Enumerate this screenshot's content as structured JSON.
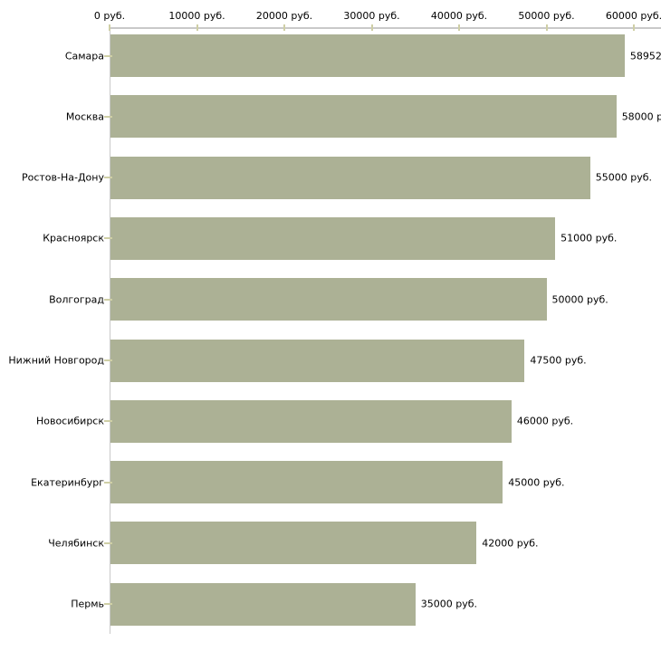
{
  "chart_data": {
    "type": "bar",
    "orientation": "horizontal",
    "title": "",
    "xlabel": "",
    "ylabel": "",
    "x_axis": {
      "position": "top",
      "unit": "руб.",
      "min": 0,
      "max": 60000,
      "tick_values": [
        0,
        10000,
        20000,
        30000,
        40000,
        50000,
        60000
      ],
      "tick_labels": [
        "0 руб.",
        "10000 руб.",
        "20000 руб.",
        "30000 руб.",
        "40000 руб.",
        "50000 руб.",
        "60000 руб."
      ]
    },
    "categories": [
      "Самара",
      "Москва",
      "Ростов-На-Дону",
      "Красноярск",
      "Волгоград",
      "Нижний Новгород",
      "Новосибирск",
      "Екатеринбург",
      "Челябинск",
      "Пермь"
    ],
    "values": [
      58952,
      58000,
      55000,
      51000,
      50000,
      47500,
      46000,
      45000,
      42000,
      35000
    ],
    "value_labels": [
      "58952",
      "58000 р",
      "55000 руб.",
      "51000 руб.",
      "50000 руб.",
      "47500 руб.",
      "46000 руб.",
      "45000 руб.",
      "42000 руб.",
      "35000 руб."
    ],
    "grid": false,
    "legend": false,
    "colors": {
      "bar": "#acb195",
      "axis": "#c9c9c9",
      "tick": "#cfcfa6",
      "text": "#000000",
      "background": "#ffffff"
    }
  }
}
